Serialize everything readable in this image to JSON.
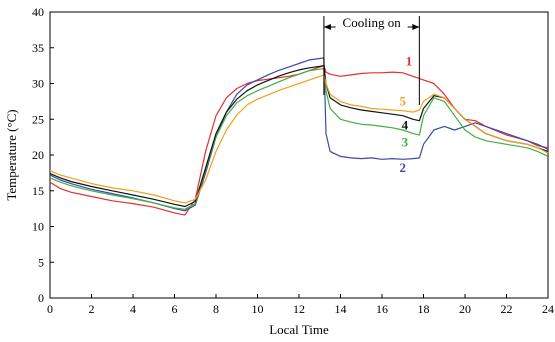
{
  "chart_data": {
    "type": "line",
    "xlabel": "Local Time",
    "ylabel": "Temperature (°C)",
    "xlim": [
      0,
      24
    ],
    "ylim": [
      0,
      40
    ],
    "xticks": [
      0,
      2,
      4,
      6,
      8,
      10,
      12,
      14,
      16,
      18,
      20,
      22,
      24
    ],
    "yticks": [
      0,
      5,
      10,
      15,
      20,
      25,
      30,
      35,
      40
    ],
    "grid": false,
    "annotation": {
      "text": "Cooling on",
      "x_start": 13.2,
      "x_end": 17.8
    },
    "series": [
      {
        "name": "1",
        "color": "#e03030",
        "label_at": [
          17.3,
          32.5
        ],
        "x": [
          0,
          0.5,
          1,
          2,
          3,
          4,
          5,
          6,
          6.5,
          7,
          7.5,
          8,
          8.5,
          9,
          9.5,
          10,
          10.5,
          11,
          11.5,
          12,
          12.5,
          13,
          13.2,
          13.3,
          13.5,
          14,
          14.5,
          15,
          15.5,
          16,
          16.5,
          17,
          17.5,
          18,
          18.5,
          19,
          19.5,
          20,
          20.5,
          21,
          22,
          23,
          23.5,
          24
        ],
        "values": [
          16.2,
          15.3,
          14.8,
          14.2,
          13.6,
          13.2,
          12.7,
          11.9,
          11.6,
          13.8,
          20.5,
          25.5,
          28.0,
          29.3,
          30.0,
          30.4,
          30.6,
          30.8,
          31.0,
          31.3,
          31.8,
          32.3,
          32.5,
          31.6,
          31.3,
          31.0,
          31.2,
          31.4,
          31.5,
          31.5,
          31.6,
          31.5,
          31.0,
          30.5,
          30.0,
          28.5,
          26.5,
          25.0,
          24.8,
          24.0,
          22.8,
          22.0,
          21.3,
          21.0
        ]
      },
      {
        "name": "2",
        "color": "#3a4aa8",
        "label_at": [
          17.0,
          17.6
        ],
        "x": [
          0,
          0.5,
          1,
          2,
          3,
          4,
          5,
          6,
          6.5,
          7,
          7.5,
          8,
          8.5,
          9,
          9.5,
          10,
          10.5,
          11,
          11.5,
          12,
          12.5,
          13,
          13.2,
          13.3,
          13.5,
          14,
          14.5,
          15,
          15.5,
          16,
          16.5,
          17,
          17.5,
          17.8,
          18,
          18.5,
          19,
          19.5,
          20,
          20.5,
          21,
          22,
          23,
          23.5,
          24
        ],
        "values": [
          17.2,
          16.5,
          16.0,
          15.2,
          14.6,
          14.0,
          13.3,
          12.5,
          12.2,
          13.0,
          17.5,
          22.5,
          26.0,
          28.5,
          29.8,
          30.5,
          31.2,
          31.8,
          32.3,
          32.8,
          33.3,
          33.5,
          33.6,
          23.0,
          20.5,
          19.8,
          19.6,
          19.5,
          19.6,
          19.4,
          19.5,
          19.4,
          19.5,
          19.6,
          21.5,
          23.5,
          24.0,
          23.5,
          24.0,
          24.5,
          24.0,
          23.0,
          22.0,
          21.5,
          20.8
        ]
      },
      {
        "name": "3",
        "color": "#40b040",
        "label_at": [
          17.1,
          21.2
        ],
        "x": [
          0,
          0.5,
          1,
          2,
          3,
          4,
          5,
          6,
          6.5,
          7,
          7.5,
          8,
          8.5,
          9,
          9.5,
          10,
          10.5,
          11,
          11.5,
          12,
          12.5,
          13,
          13.2,
          13.3,
          13.5,
          14,
          14.5,
          15,
          15.5,
          16,
          16.5,
          17,
          17.5,
          17.8,
          18,
          18.5,
          19,
          19.5,
          20,
          20.5,
          21,
          22,
          23,
          23.5,
          24
        ],
        "values": [
          16.8,
          16.2,
          15.7,
          15.0,
          14.4,
          13.9,
          13.3,
          12.6,
          12.4,
          13.2,
          18.0,
          22.5,
          25.5,
          27.3,
          28.3,
          29.0,
          29.6,
          30.2,
          30.8,
          31.3,
          31.8,
          32.0,
          32.1,
          29.0,
          26.5,
          25.0,
          24.6,
          24.3,
          24.2,
          24.0,
          23.8,
          23.5,
          23.0,
          22.8,
          25.5,
          28.0,
          27.5,
          25.5,
          23.5,
          22.5,
          22.0,
          21.5,
          21.0,
          20.5,
          19.8
        ]
      },
      {
        "name": "4",
        "color": "#111111",
        "label_at": [
          17.1,
          23.6
        ],
        "x": [
          0,
          0.5,
          1,
          2,
          3,
          4,
          5,
          6,
          6.5,
          7,
          7.5,
          8,
          8.5,
          9,
          9.5,
          10,
          10.5,
          11,
          11.5,
          12,
          12.5,
          13,
          13.2,
          13.3,
          13.5,
          14,
          14.5,
          15,
          15.5,
          16,
          16.5,
          17,
          17.5,
          17.8,
          18,
          18.5,
          19,
          19.5,
          20,
          20.5,
          21,
          22,
          23,
          23.5,
          24
        ],
        "values": [
          17.4,
          16.8,
          16.3,
          15.6,
          15.0,
          14.4,
          13.8,
          13.1,
          12.8,
          13.5,
          18.2,
          23.0,
          26.0,
          27.8,
          29.0,
          29.8,
          30.4,
          31.0,
          31.5,
          31.9,
          32.2,
          32.4,
          32.5,
          30.0,
          28.0,
          27.0,
          26.6,
          26.3,
          26.1,
          25.9,
          25.7,
          25.5,
          25.0,
          24.8,
          26.5,
          28.3,
          28.0,
          26.5,
          25.0,
          24.0,
          23.0,
          22.0,
          21.5,
          21.0,
          20.5
        ]
      },
      {
        "name": "5",
        "color": "#f0a020",
        "label_at": [
          17.0,
          26.9
        ],
        "x": [
          0,
          0.5,
          1,
          2,
          3,
          4,
          5,
          6,
          6.5,
          7,
          7.5,
          8,
          8.5,
          9,
          9.5,
          10,
          10.5,
          11,
          11.5,
          12,
          12.5,
          13,
          13.2,
          13.3,
          13.5,
          14,
          14.5,
          15,
          15.5,
          16,
          16.5,
          17,
          17.5,
          17.8,
          18,
          18.5,
          19,
          19.5,
          20,
          20.5,
          21,
          22,
          23,
          23.5,
          24
        ],
        "values": [
          17.8,
          17.2,
          16.8,
          16.0,
          15.4,
          15.0,
          14.4,
          13.6,
          13.3,
          13.8,
          16.5,
          20.5,
          23.5,
          25.6,
          27.0,
          27.8,
          28.4,
          29.0,
          29.5,
          30.0,
          30.5,
          31.0,
          31.2,
          30.0,
          28.5,
          27.5,
          27.0,
          26.8,
          26.5,
          26.4,
          26.3,
          26.2,
          26.0,
          26.3,
          27.5,
          28.5,
          28.0,
          26.5,
          25.0,
          24.0,
          23.0,
          22.0,
          21.5,
          21.0,
          20.3
        ]
      }
    ]
  }
}
